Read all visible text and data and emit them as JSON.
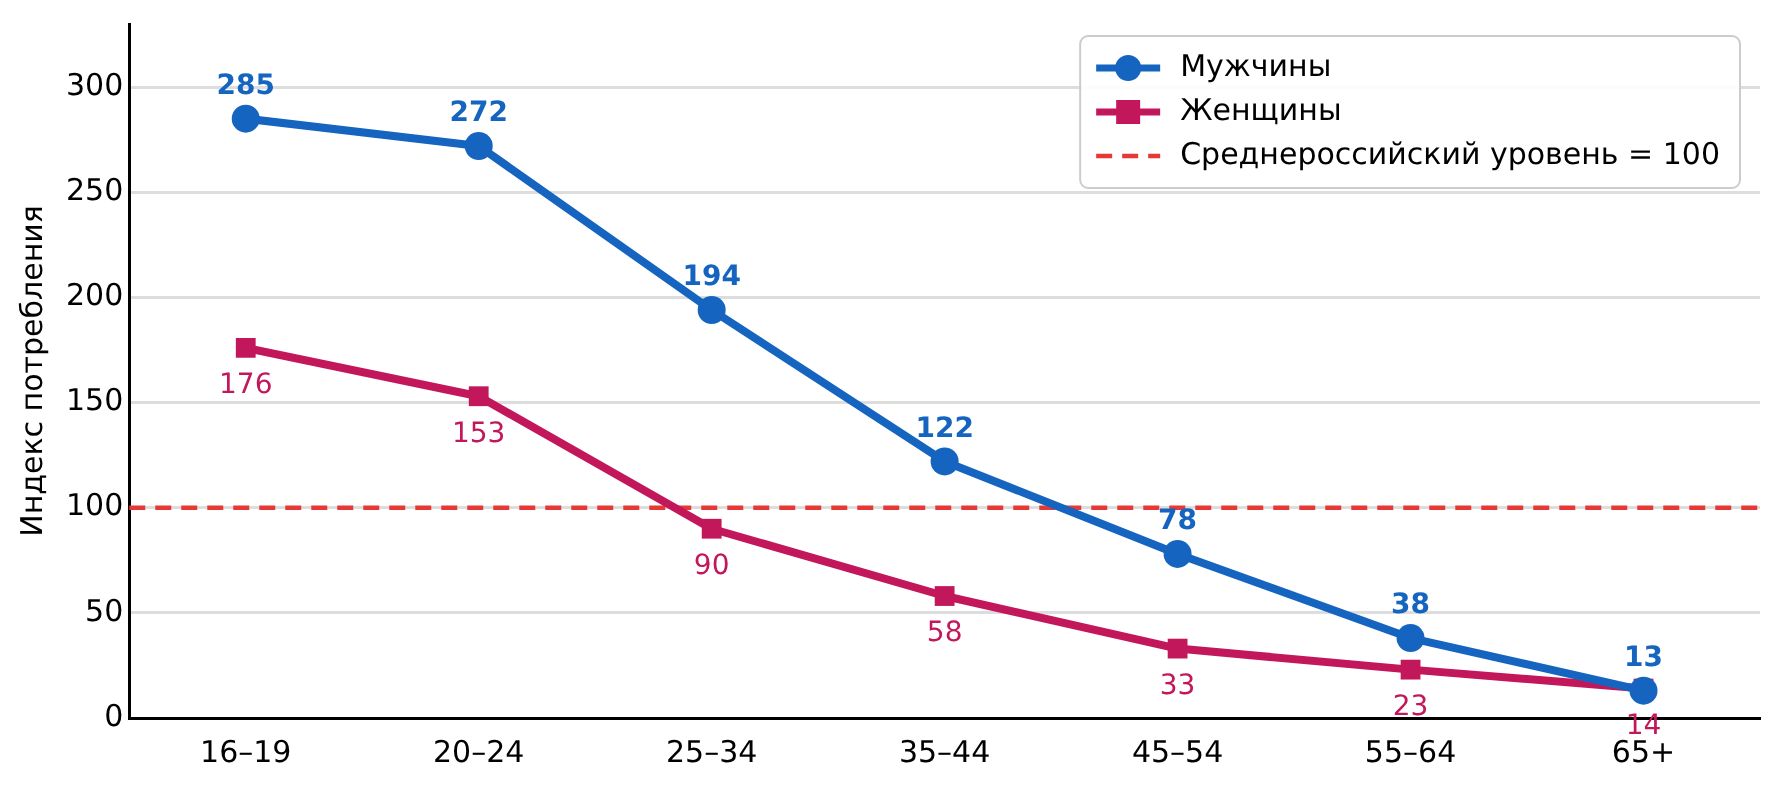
{
  "chart_data": {
    "type": "line",
    "ylabel": "Индекс потребления",
    "categories": [
      "16–19",
      "20–24",
      "25–34",
      "35–44",
      "45–54",
      "55–64",
      "65+"
    ],
    "series": [
      {
        "name": "Мужчины",
        "color": "#1565c0",
        "marker": "circle",
        "values": [
          285,
          272,
          194,
          122,
          78,
          38,
          13
        ]
      },
      {
        "name": "Женщины",
        "color": "#c2185b",
        "marker": "square",
        "values": [
          176,
          153,
          90,
          58,
          33,
          23,
          14
        ]
      }
    ],
    "ylim": [
      0,
      330
    ],
    "yticks": [
      0,
      50,
      100,
      150,
      200,
      250,
      300
    ],
    "grid": "y",
    "legend": "top right",
    "data_labels": true,
    "ref_lines": [
      {
        "axis": "y",
        "value": 100,
        "label": "Среднероссийский уровень = 100",
        "color": "#e53935",
        "line_style": "dashed"
      }
    ]
  }
}
